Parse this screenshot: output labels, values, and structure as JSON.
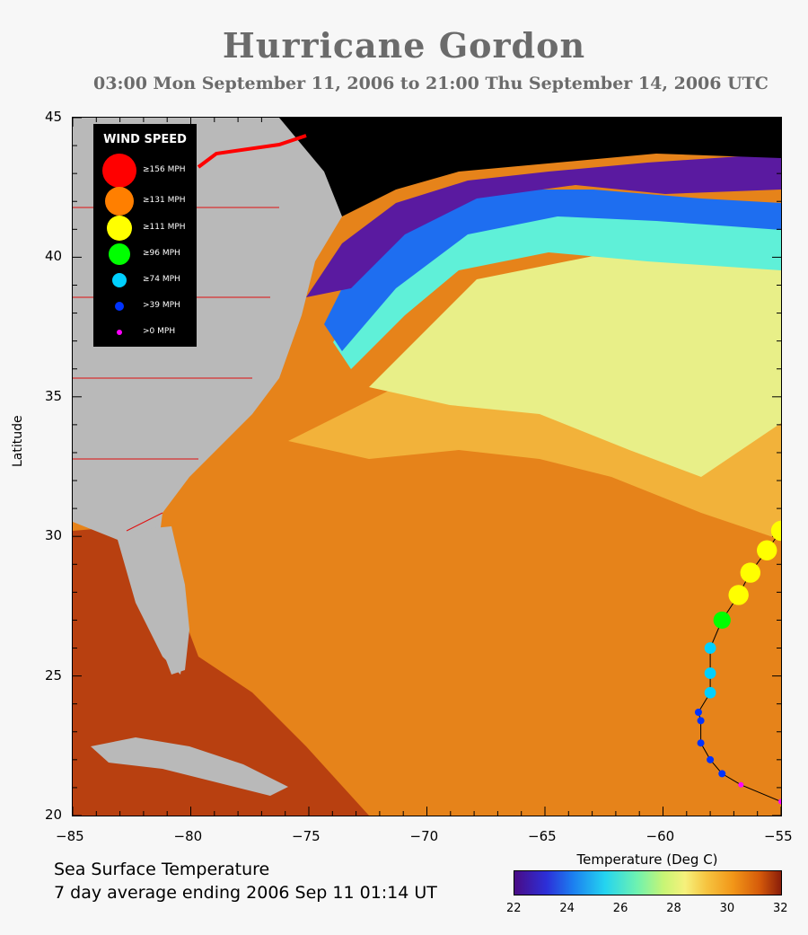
{
  "title": "Hurricane Gordon",
  "subtitle": "03:00 Mon September 11, 2006 to 21:00 Thu September 14, 2006  UTC",
  "axes": {
    "ylabel": "Latitude",
    "x_ticks": [
      "−85",
      "−80",
      "−75",
      "−70",
      "−65",
      "−60",
      "−55"
    ],
    "y_ticks": [
      "45",
      "40",
      "35",
      "30",
      "25",
      "20"
    ],
    "x_range": [
      -85,
      -55
    ],
    "y_range": [
      20,
      45
    ]
  },
  "legend": {
    "title": "WIND SPEED",
    "items": [
      {
        "label": "≥156 MPH",
        "color": "#ff0000"
      },
      {
        "label": "≥131 MPH",
        "color": "#ff7f00"
      },
      {
        "label": "≥111 MPH",
        "color": "#ffff00"
      },
      {
        "label": "≥96 MPH",
        "color": "#00ff00"
      },
      {
        "label": "≥74 MPH",
        "color": "#00d0ff"
      },
      {
        "label": ">39 MPH",
        "color": "#0033ff"
      },
      {
        "label": ">0 MPH",
        "color": "#ff00ff"
      }
    ]
  },
  "track": [
    {
      "lon": -55.0,
      "lat": 20.5,
      "category": ">0 MPH"
    },
    {
      "lon": -56.7,
      "lat": 21.1,
      "category": ">0 MPH"
    },
    {
      "lon": -57.5,
      "lat": 21.5,
      "category": ">39 MPH"
    },
    {
      "lon": -58.0,
      "lat": 22.0,
      "category": ">39 MPH"
    },
    {
      "lon": -58.4,
      "lat": 22.6,
      "category": ">39 MPH"
    },
    {
      "lon": -58.4,
      "lat": 23.4,
      "category": ">39 MPH"
    },
    {
      "lon": -58.5,
      "lat": 23.7,
      "category": ">39 MPH"
    },
    {
      "lon": -58.0,
      "lat": 24.4,
      "category": "≥74 MPH"
    },
    {
      "lon": -58.0,
      "lat": 25.1,
      "category": "≥74 MPH"
    },
    {
      "lon": -58.0,
      "lat": 26.0,
      "category": "≥74 MPH"
    },
    {
      "lon": -57.5,
      "lat": 27.0,
      "category": "≥96 MPH"
    },
    {
      "lon": -56.8,
      "lat": 27.9,
      "category": "≥111 MPH"
    },
    {
      "lon": -56.3,
      "lat": 28.7,
      "category": "≥111 MPH"
    },
    {
      "lon": -55.6,
      "lat": 29.5,
      "category": "≥111 MPH"
    },
    {
      "lon": -55.0,
      "lat": 30.2,
      "category": "≥111 MPH"
    }
  ],
  "footer": {
    "line1": "Sea Surface Temperature",
    "line2": "7 day average ending 2006 Sep 11 01:14 UT"
  },
  "colorbar": {
    "title": "Temperature (Deg C)",
    "ticks": [
      "22",
      "24",
      "26",
      "28",
      "30",
      "32"
    ],
    "range": [
      22,
      32
    ]
  }
}
